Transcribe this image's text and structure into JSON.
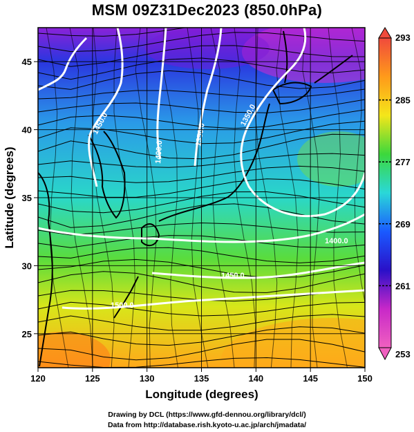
{
  "title": "MSM 09Z31Dec2023 (850.0hPa)",
  "axes": {
    "xlabel": "Longitude (degrees)",
    "ylabel": "Latitude  (degrees)",
    "x_ticks": [
      "120",
      "125",
      "130",
      "135",
      "140",
      "145",
      "150"
    ],
    "y_ticks": [
      "25",
      "30",
      "35",
      "40",
      "45"
    ]
  },
  "colorbar": {
    "labels": [
      "293",
      "285",
      "277",
      "269",
      "261",
      "253"
    ],
    "colors": [
      "#f04a3c",
      "#ff9a1a",
      "#f4e61a",
      "#3cd83c",
      "#2ad8d8",
      "#1a5aff",
      "#2a10c8",
      "#c828c8",
      "#f060c0"
    ]
  },
  "contour_labels": [
    "1450.0",
    "1400.0",
    "1350.0",
    "1350.0",
    "1400.0",
    "1450.0",
    "1500.0"
  ],
  "footer": {
    "line1": "Drawing by DCL (https://www.gfd-dennou.org/library/dcl/)",
    "line2": "Data from http://database.rish.kyoto-u.ac.jp/arch/jmadata/"
  },
  "chart_data": {
    "type": "heatmap",
    "title": "MSM 09Z31Dec2023 (850.0hPa)",
    "xlabel": "Longitude (degrees)",
    "ylabel": "Latitude  (degrees)",
    "xlim": [
      120,
      150
    ],
    "ylim": [
      22.5,
      47.5
    ],
    "x_ticks": [
      120,
      125,
      130,
      135,
      140,
      145,
      150
    ],
    "y_ticks": [
      25,
      30,
      35,
      40,
      45
    ],
    "colorbar_range": [
      253,
      293
    ],
    "colorbar_ticks": [
      293,
      285,
      277,
      269,
      261,
      253
    ],
    "grid": true
  }
}
